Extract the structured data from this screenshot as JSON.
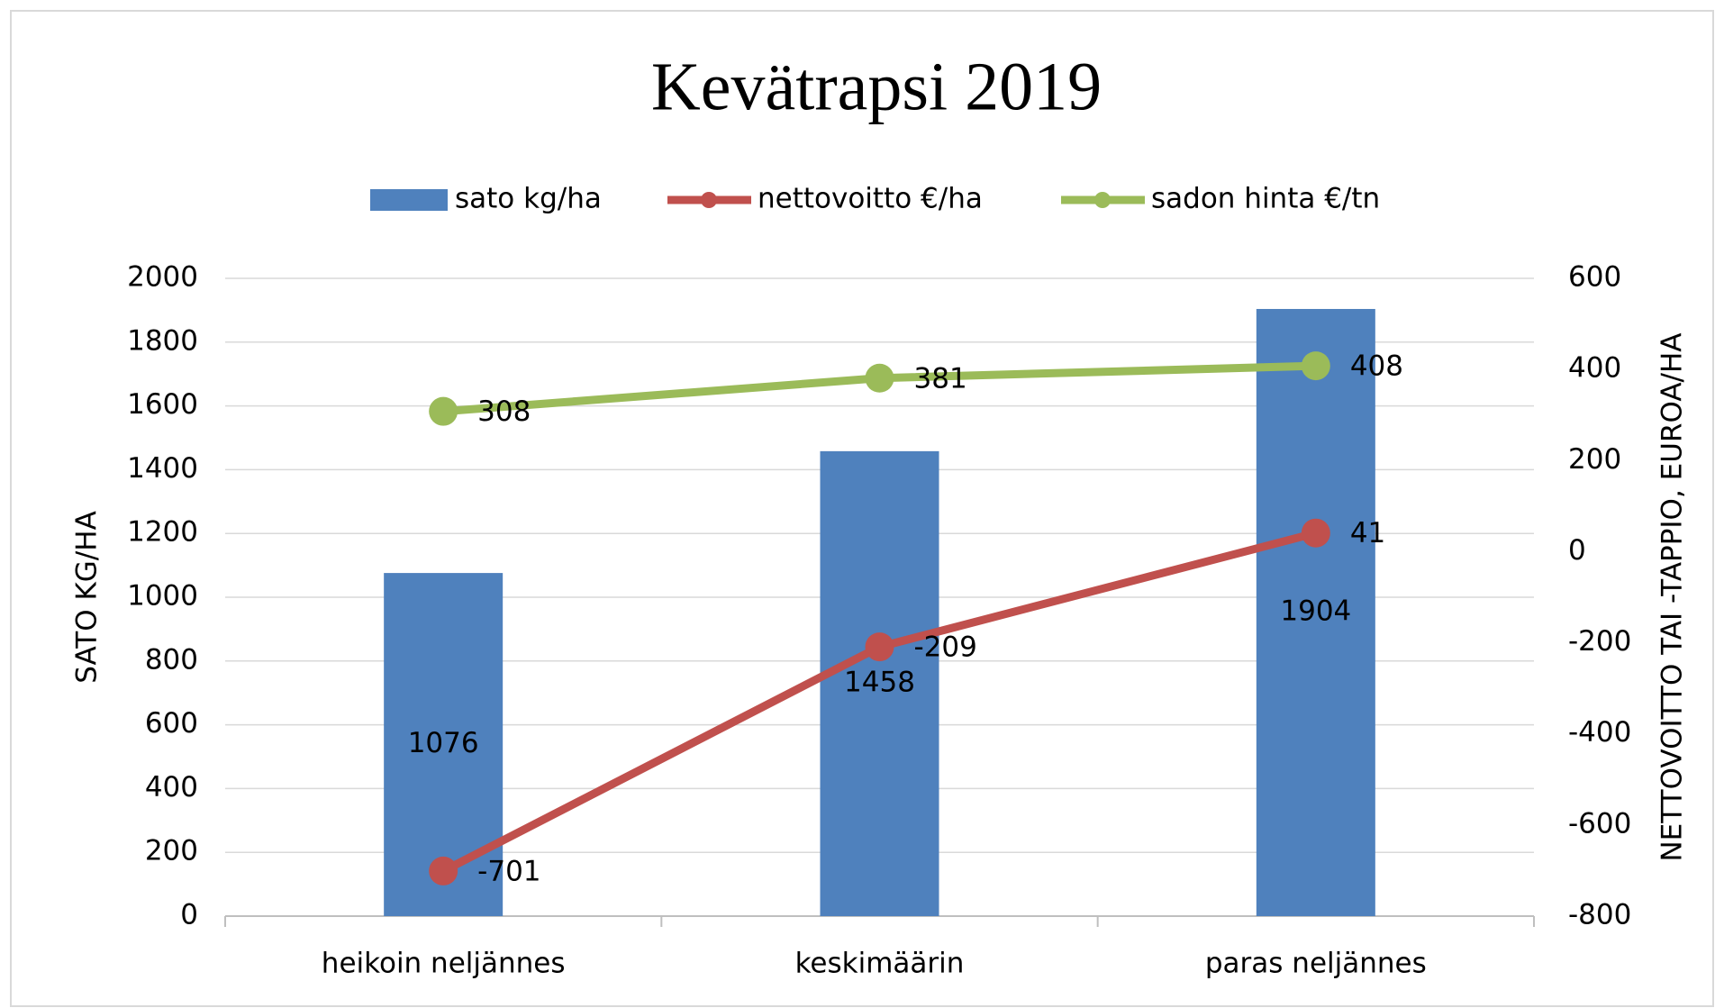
{
  "chart_data": {
    "type": "bar_line",
    "title": "Kevätrapsi 2019",
    "categories": [
      "heikoin neljännes",
      "keskimäärin",
      "paras neljännes"
    ],
    "ylabel": "SATO KG/HA",
    "y2label": "NETTOVOITTO TAI -TAPPIO, EUROA/HA",
    "ylim": [
      0,
      2000
    ],
    "yticks": [
      0,
      200,
      400,
      600,
      800,
      1000,
      1200,
      1400,
      1600,
      1800,
      2000
    ],
    "y2lim": [
      -800,
      600
    ],
    "y2ticks": [
      -800,
      -600,
      -400,
      -200,
      0,
      200,
      400,
      600
    ],
    "grid": true,
    "legend": "top",
    "series": [
      {
        "name": "sato kg/ha",
        "type": "bar",
        "color": "#4f81bd",
        "values": [
          1076,
          1458,
          1904
        ]
      },
      {
        "name": "nettovoitto €/ha",
        "type": "line",
        "axis": "y2",
        "color": "#c0504d",
        "values": [
          -701,
          -209,
          41
        ]
      },
      {
        "name": "sadon hinta €/tn",
        "type": "line",
        "axis": "y2",
        "color": "#9bbb59",
        "values": [
          308,
          381,
          408
        ]
      }
    ]
  }
}
